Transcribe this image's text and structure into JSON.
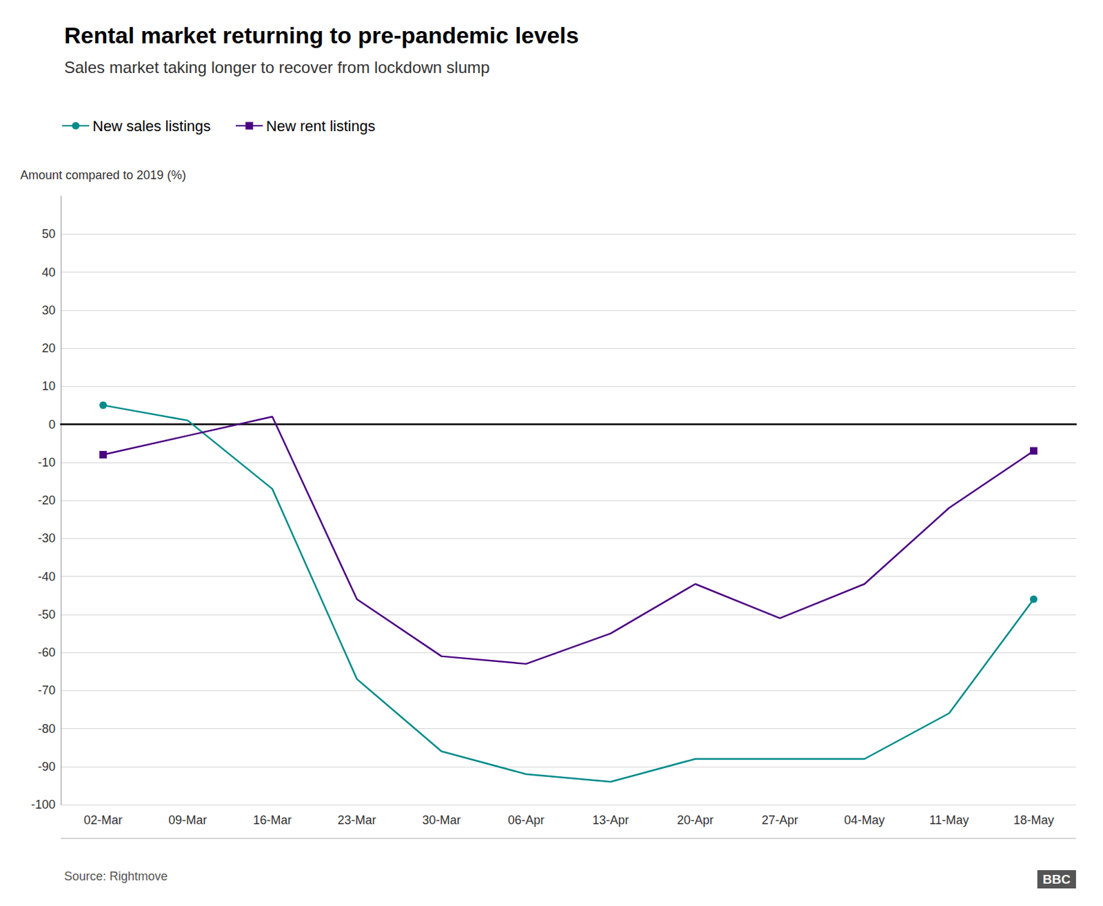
{
  "chart_data": {
    "type": "line",
    "title": "Rental market returning to pre-pandemic levels",
    "subtitle": "Sales market taking longer to recover from lockdown slump",
    "y_label": "Amount compared to 2019 (%)",
    "annotations": [
      "Source: Rightmove",
      "BBC"
    ],
    "categories": [
      "02-Mar",
      "09-Mar",
      "16-Mar",
      "23-Mar",
      "30-Mar",
      "06-Apr",
      "13-Apr",
      "20-Apr",
      "27-Apr",
      "04-May",
      "11-May",
      "18-May"
    ],
    "series": [
      {
        "name": "New sales listings",
        "color": "#008B8B",
        "marker": "circle",
        "values": [
          5,
          1,
          -17,
          -67,
          -86,
          -92,
          -94,
          -88,
          -88,
          -88,
          -76,
          -46
        ]
      },
      {
        "name": "New rent listings",
        "color": "#4B0082",
        "marker": "square",
        "values": [
          -8,
          -3,
          2,
          -46,
          -61,
          -63,
          -55,
          -42,
          -51,
          -42,
          -22,
          -7
        ]
      }
    ],
    "ylim": [
      -100,
      60
    ],
    "yticks": [
      -100,
      -90,
      -80,
      -70,
      -60,
      -50,
      -40,
      -30,
      -20,
      -10,
      0,
      10,
      20,
      30,
      40,
      50
    ],
    "grid": true,
    "legend": "upper left"
  }
}
